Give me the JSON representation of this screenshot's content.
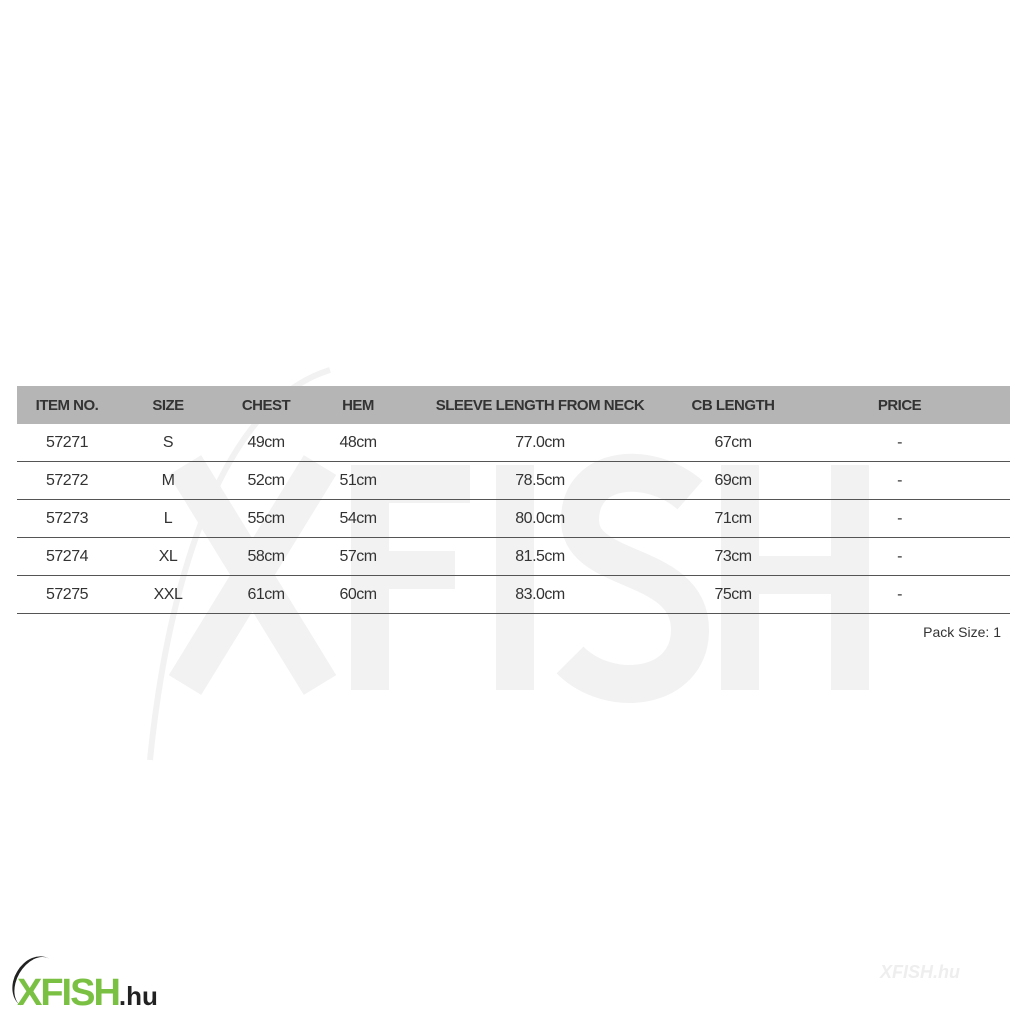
{
  "table": {
    "headers": [
      "ITEM NO.",
      "SIZE",
      "CHEST",
      "HEM",
      "SLEEVE LENGTH FROM NECK",
      "CB LENGTH",
      "PRICE"
    ],
    "rows": [
      [
        "57271",
        "S",
        "49cm",
        "48cm",
        "77.0cm",
        "67cm",
        "-"
      ],
      [
        "57272",
        "M",
        "52cm",
        "51cm",
        "78.5cm",
        "69cm",
        "-"
      ],
      [
        "57273",
        "L",
        "55cm",
        "54cm",
        "80.0cm",
        "71cm",
        "-"
      ],
      [
        "57274",
        "XL",
        "58cm",
        "57cm",
        "81.5cm",
        "73cm",
        "-"
      ],
      [
        "57275",
        "XXL",
        "61cm",
        "60cm",
        "83.0cm",
        "75cm",
        "-"
      ]
    ]
  },
  "pack_size": "Pack Size: 1",
  "watermark": "XFISH",
  "logo": {
    "main": "XFISH",
    ".hu": ".hu",
    "brand_color": "#7ac143",
    "small": "XFISH.hu"
  },
  "header_bg": "#b5b5b5"
}
